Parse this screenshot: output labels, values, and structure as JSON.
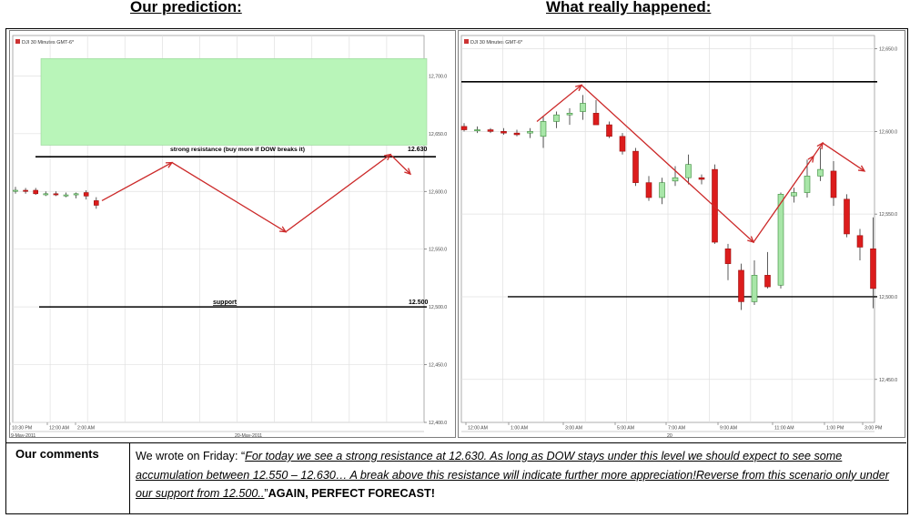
{
  "headings": {
    "left": "Our prediction:",
    "right": "What really happened:"
  },
  "comments": {
    "label": "Our comments",
    "intro": "We wrote on Friday: “",
    "quote": "For today we see a strong resistance at 12.630. As long as DOW stays under this level we should expect to see some accumulation between 12.550 – 12.630… A break above this resistance will indicate further more appreciation!Reverse from this scenario only under our support from 12.500..",
    "closing_quote": "”",
    "emphasis": "AGAIN, PERFECT FORECAST!"
  },
  "colors": {
    "bull": "#a8e6a8",
    "bear": "#dc1c1c",
    "arrow": "#cc2a2a",
    "zone": "#b9f5b9",
    "grid": "#e0e0e0"
  },
  "chart_data": [
    {
      "type": "candlestick",
      "header": "DJI 30 Minutes GMT-6*",
      "ylim": [
        12400,
        12735
      ],
      "y_ticks": [
        "12,700.0",
        "12,650.0",
        "12,600.0",
        "12,550.0",
        "12,500.0",
        "12,450.0",
        "12,400.0"
      ],
      "x_tick_labels": [
        "10:30 PM",
        "12:00 AM",
        "2:00 AM"
      ],
      "date_labels": [
        "9-May-2011",
        "20-May-2011"
      ],
      "zone_range": [
        12640,
        12715
      ],
      "resistance": {
        "value": 12630,
        "label": "strong resistance (buy more if DOW breaks it)",
        "value_label": "12.630"
      },
      "support": {
        "value": 12500,
        "label": "support",
        "value_label": "12.500"
      },
      "candles": [
        {
          "o": 12601,
          "h": 12604,
          "l": 12598,
          "c": 12601
        },
        {
          "o": 12601,
          "h": 12603,
          "l": 12598,
          "c": 12600
        },
        {
          "o": 12601,
          "h": 12603,
          "l": 12597,
          "c": 12598
        },
        {
          "o": 12598,
          "h": 12600,
          "l": 12596,
          "c": 12598
        },
        {
          "o": 12598,
          "h": 12600,
          "l": 12596,
          "c": 12597
        },
        {
          "o": 12597,
          "h": 12599,
          "l": 12595,
          "c": 12597
        },
        {
          "o": 12597,
          "h": 12599,
          "l": 12594,
          "c": 12598
        },
        {
          "o": 12599,
          "h": 12601,
          "l": 12593,
          "c": 12596
        },
        {
          "o": 12592,
          "h": 12595,
          "l": 12585,
          "c": 12588
        }
      ],
      "forecast_path": [
        12592,
        12625,
        12565,
        12632,
        12615
      ]
    },
    {
      "type": "candlestick",
      "header": "DJI 30 Minutes GMT-6*",
      "ylim": [
        12424,
        12658
      ],
      "y_ticks": [
        "12,650.0",
        "12,600.0",
        "12,550.0",
        "12,500.0",
        "12,450.0"
      ],
      "x_tick_labels": [
        "12:00 AM",
        "1:00 AM",
        "3:00 AM",
        "5:00 AM",
        "7:00 AM",
        "9:00 AM",
        "11:00 AM",
        "1:00 PM",
        "3:00 PM"
      ],
      "date_labels": [
        "20"
      ],
      "resistance": {
        "value": 12630
      },
      "support": {
        "value": 12500
      },
      "candles": [
        {
          "o": 12603,
          "h": 12605,
          "l": 12600,
          "c": 12601
        },
        {
          "o": 12601,
          "h": 12603,
          "l": 12599,
          "c": 12601
        },
        {
          "o": 12601,
          "h": 12602,
          "l": 12599,
          "c": 12600
        },
        {
          "o": 12600,
          "h": 12602,
          "l": 12598,
          "c": 12599
        },
        {
          "o": 12599,
          "h": 12601,
          "l": 12597,
          "c": 12598
        },
        {
          "o": 12599,
          "h": 12602,
          "l": 12596,
          "c": 12600
        },
        {
          "o": 12597,
          "h": 12609,
          "l": 12590,
          "c": 12606
        },
        {
          "o": 12606,
          "h": 12612,
          "l": 12602,
          "c": 12610
        },
        {
          "o": 12610,
          "h": 12614,
          "l": 12604,
          "c": 12611
        },
        {
          "o": 12612,
          "h": 12622,
          "l": 12607,
          "c": 12617
        },
        {
          "o": 12611,
          "h": 12619,
          "l": 12604,
          "c": 12604
        },
        {
          "o": 12604,
          "h": 12606,
          "l": 12596,
          "c": 12597
        },
        {
          "o": 12597,
          "h": 12599,
          "l": 12586,
          "c": 12588
        },
        {
          "o": 12588,
          "h": 12590,
          "l": 12567,
          "c": 12569
        },
        {
          "o": 12569,
          "h": 12573,
          "l": 12558,
          "c": 12560
        },
        {
          "o": 12560,
          "h": 12572,
          "l": 12556,
          "c": 12569
        },
        {
          "o": 12570,
          "h": 12579,
          "l": 12567,
          "c": 12572
        },
        {
          "o": 12572,
          "h": 12586,
          "l": 12568,
          "c": 12580
        },
        {
          "o": 12572,
          "h": 12574,
          "l": 12568,
          "c": 12571
        },
        {
          "o": 12577,
          "h": 12580,
          "l": 12532,
          "c": 12533
        },
        {
          "o": 12529,
          "h": 12532,
          "l": 12510,
          "c": 12520
        },
        {
          "o": 12516,
          "h": 12520,
          "l": 12492,
          "c": 12497
        },
        {
          "o": 12497,
          "h": 12522,
          "l": 12495,
          "c": 12513
        },
        {
          "o": 12513,
          "h": 12527,
          "l": 12505,
          "c": 12506
        },
        {
          "o": 12507,
          "h": 12563,
          "l": 12505,
          "c": 12562
        },
        {
          "o": 12561,
          "h": 12566,
          "l": 12557,
          "c": 12563
        },
        {
          "o": 12563,
          "h": 12583,
          "l": 12560,
          "c": 12573
        },
        {
          "o": 12573,
          "h": 12590,
          "l": 12570,
          "c": 12577
        },
        {
          "o": 12576,
          "h": 12582,
          "l": 12555,
          "c": 12560
        },
        {
          "o": 12559,
          "h": 12562,
          "l": 12536,
          "c": 12538
        },
        {
          "o": 12537,
          "h": 12541,
          "l": 12522,
          "c": 12530
        },
        {
          "o": 12529,
          "h": 12548,
          "l": 12493,
          "c": 12505
        }
      ],
      "annotation_path": [
        12606,
        12628,
        12533,
        12585,
        12593,
        12576
      ]
    }
  ]
}
